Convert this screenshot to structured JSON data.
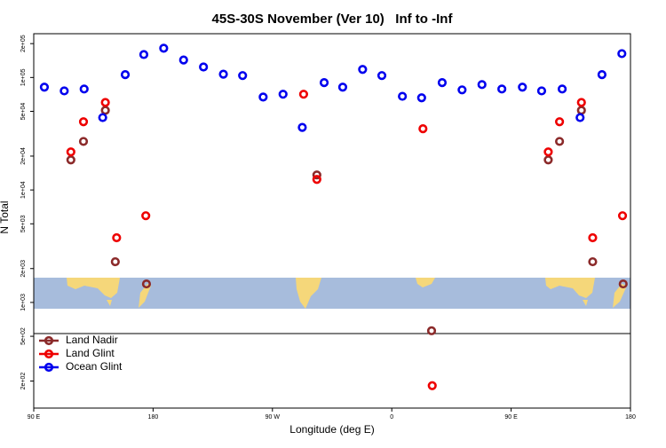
{
  "chart_data": {
    "type": "scatter",
    "title": "45S-30S November (Ver 10)   Inf to -Inf",
    "x_label": "Longitude (deg E)",
    "y_label": "N Total",
    "xlim": [
      90,
      540
    ],
    "xticks": [
      {
        "value": 90,
        "label": "90 E"
      },
      {
        "value": 180,
        "label": "180"
      },
      {
        "value": 270,
        "label": "90 W"
      },
      {
        "value": 360,
        "label": "0"
      },
      {
        "value": 450,
        "label": "90 E"
      },
      {
        "value": 540,
        "label": "180"
      }
    ],
    "ylim": [
      115,
      245000
    ],
    "log_y": true,
    "yticks": [
      {
        "value": 200,
        "label": "2e+02"
      },
      {
        "value": 500,
        "label": "5e+02"
      },
      {
        "value": 1000,
        "label": "1e+03"
      },
      {
        "value": 2000,
        "label": "2e+03"
      },
      {
        "value": 5000,
        "label": "5e+03"
      },
      {
        "value": 10000,
        "label": "1e+04"
      },
      {
        "value": 20000,
        "label": "2e+04"
      },
      {
        "value": 50000,
        "label": "5e+04"
      },
      {
        "value": 100000,
        "label": "1e+05"
      },
      {
        "value": 200000,
        "label": "2e+05"
      }
    ],
    "legend": "bottomleft",
    "series": [
      {
        "name": "Land Nadir",
        "color": "#8b2a2a",
        "x": [
          118,
          127.5,
          144,
          151.5,
          175,
          303.5,
          390,
          478,
          486.5,
          503,
          511.5,
          534.5
        ],
        "values": [
          18500,
          27000,
          51000,
          2300,
          1460,
          13600,
          560,
          18500,
          27000,
          51000,
          2300,
          1460
        ]
      },
      {
        "name": "Land Glint",
        "color": "#ee0000",
        "x": [
          118,
          127.5,
          144,
          152.5,
          174.5,
          293.5,
          303.5,
          383.5,
          390.5,
          478,
          486.5,
          503,
          511.5,
          534
        ],
        "values": [
          21800,
          40400,
          60000,
          3760,
          5900,
          71000,
          12400,
          35000,
          182,
          21800,
          40400,
          60000,
          3760,
          5900
        ]
      },
      {
        "name": "Ocean Glint",
        "color": "#0000ee",
        "x": [
          98,
          113,
          128,
          142,
          159,
          173,
          188,
          203,
          218,
          233,
          247.5,
          263,
          278,
          292.5,
          309,
          323,
          338,
          352.5,
          368,
          382.5,
          398,
          413,
          428,
          443,
          458.5,
          473,
          488.5,
          502,
          518.5,
          533.5
        ],
        "values": [
          82000,
          76000,
          79000,
          44000,
          106000,
          160000,
          182000,
          143000,
          124000,
          107000,
          104000,
          67000,
          71000,
          36000,
          90000,
          82000,
          118000,
          104000,
          68000,
          66000,
          90000,
          77600,
          86500,
          79000,
          82000,
          76000,
          79000,
          44000,
          106000,
          163000
        ]
      }
    ]
  }
}
